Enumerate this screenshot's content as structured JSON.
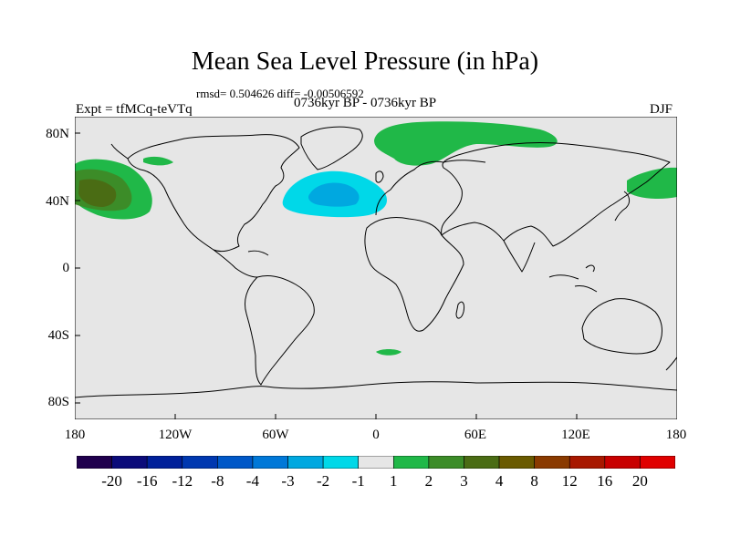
{
  "title": "Mean Sea Level Pressure (in hPa)",
  "stats": "rmsd= 0.504626 diff= -0.00506592",
  "experiment": "Expt = tfMCq-teVTq",
  "period": "0736kyr BP - 0736kyr BP",
  "season": "DJF",
  "lat_labels": [
    "80N",
    "40N",
    "0",
    "40S",
    "80S"
  ],
  "lon_labels": [
    "180",
    "120W",
    "60W",
    "0",
    "60E",
    "120E",
    "180"
  ],
  "colorbar": {
    "labels": [
      "-20",
      "-16",
      "-12",
      "-8",
      "-4",
      "-3",
      "-2",
      "-1",
      "1",
      "2",
      "3",
      "4",
      "8",
      "12",
      "16",
      "20"
    ],
    "colors": [
      "#20004d",
      "#0b0b7a",
      "#00209a",
      "#0038b0",
      "#0058c8",
      "#0078d8",
      "#00a8e0",
      "#00d8e8",
      "#e6e6e6",
      "#20b848",
      "#3c8c28",
      "#4a6c14",
      "#6a5a00",
      "#8a3a00",
      "#a81800",
      "#c80000",
      "#e00000"
    ]
  },
  "colors": {
    "background": "#e6e6e6",
    "coast": "#000000",
    "positive_1_2": "#20b848",
    "positive_2_3": "#3c8c28",
    "positive_3_4": "#4a6c14",
    "negative_1_2": "#00d8e8",
    "negative_2_3": "#00a8e0"
  }
}
